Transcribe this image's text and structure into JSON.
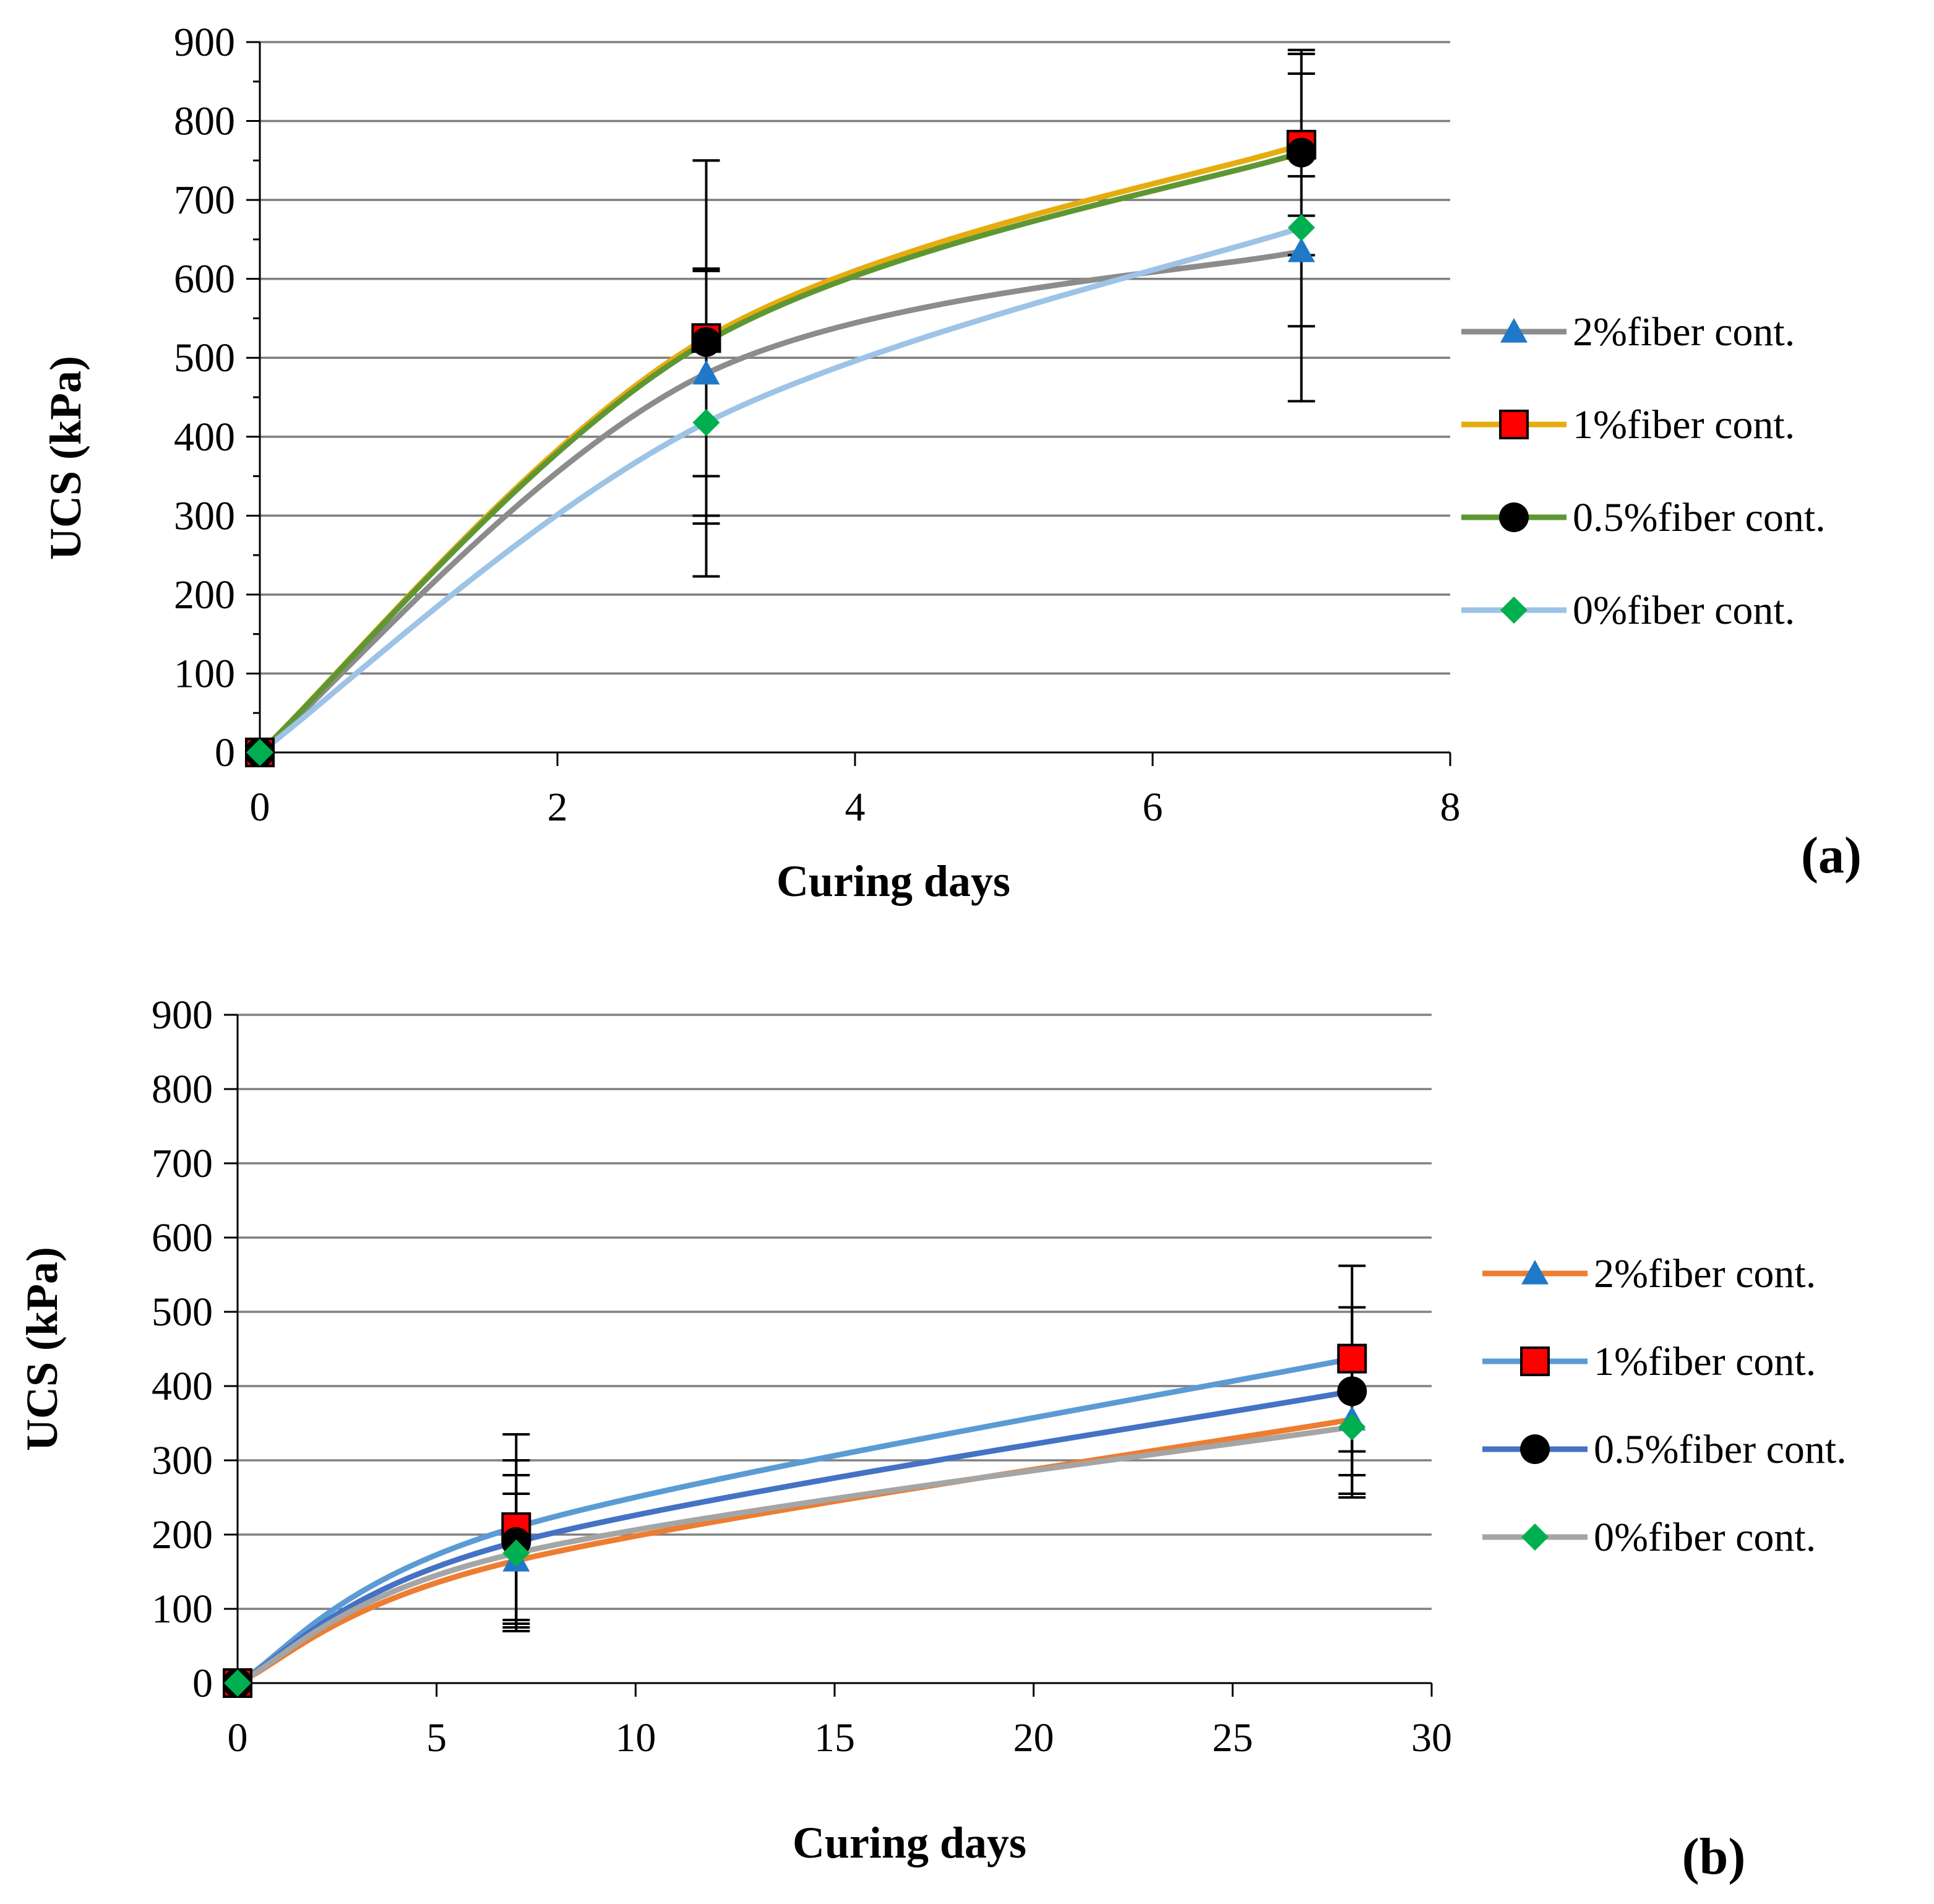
{
  "chart_data": [
    {
      "panel": "(a)",
      "type": "line",
      "xlabel": "Curing days",
      "ylabel": "UCS (kPa)",
      "xlim": [
        0,
        8
      ],
      "ylim": [
        0,
        900
      ],
      "x_ticks": [
        0,
        2,
        4,
        6,
        8
      ],
      "y_ticks": [
        0,
        100,
        200,
        300,
        400,
        500,
        600,
        700,
        800,
        900
      ],
      "grid": "horizontal",
      "legend_position": "right",
      "x": [
        0,
        3,
        7
      ],
      "series": [
        {
          "name": "2%fiber cont.",
          "values": [
            0,
            480,
            635
          ],
          "errors": [
            0,
            130,
            95
          ],
          "line_color": "#8c8c8c",
          "marker": "triangle",
          "marker_color": "#1f78c8"
        },
        {
          "name": "1%fiber cont.",
          "values": [
            0,
            525,
            770
          ],
          "errors": [
            0,
            225,
            90
          ],
          "line_color": "#e6ac0e",
          "marker": "square",
          "marker_color": "#ff0000"
        },
        {
          "name": "0.5%fiber cont.",
          "values": [
            0,
            520,
            760
          ],
          "errors": [
            0,
            230,
            130
          ],
          "line_color": "#5e9732",
          "marker": "circle",
          "marker_color": "#000000"
        },
        {
          "name": "0%fiber cont.",
          "values": [
            0,
            418,
            665
          ],
          "errors": [
            0,
            195,
            220
          ],
          "line_color": "#9dc3e6",
          "marker": "diamond",
          "marker_color": "#00b050"
        }
      ]
    },
    {
      "panel": "(b)",
      "type": "line",
      "xlabel": "Curing days",
      "ylabel": "UCS (kPa)",
      "xlim": [
        0,
        30
      ],
      "ylim": [
        0,
        900
      ],
      "x_ticks": [
        0,
        5,
        10,
        15,
        20,
        25,
        30
      ],
      "y_ticks": [
        0,
        100,
        200,
        300,
        400,
        500,
        600,
        700,
        800,
        900
      ],
      "grid": "horizontal",
      "legend_position": "right",
      "x": [
        0,
        7,
        28
      ],
      "series": [
        {
          "name": "2%fiber cont.",
          "values": [
            0,
            165,
            355
          ],
          "errors": [
            0,
            90,
            100
          ],
          "line_color": "#ed7d31",
          "marker": "triangle",
          "marker_color": "#1f78c8"
        },
        {
          "name": "1%fiber cont.",
          "values": [
            0,
            210,
            437
          ],
          "errors": [
            0,
            125,
            125
          ],
          "line_color": "#5b9bd5",
          "marker": "square",
          "marker_color": "#ff0000"
        },
        {
          "name": "0.5%fiber cont.",
          "values": [
            0,
            190,
            393
          ],
          "errors": [
            0,
            110,
            113
          ],
          "line_color": "#4472c4",
          "marker": "circle",
          "marker_color": "#000000"
        },
        {
          "name": "0%fiber cont.",
          "values": [
            0,
            175,
            345
          ],
          "errors": [
            0,
            105,
            95
          ],
          "line_color": "#a5a5a5",
          "marker": "diamond",
          "marker_color": "#00b050"
        }
      ]
    }
  ]
}
